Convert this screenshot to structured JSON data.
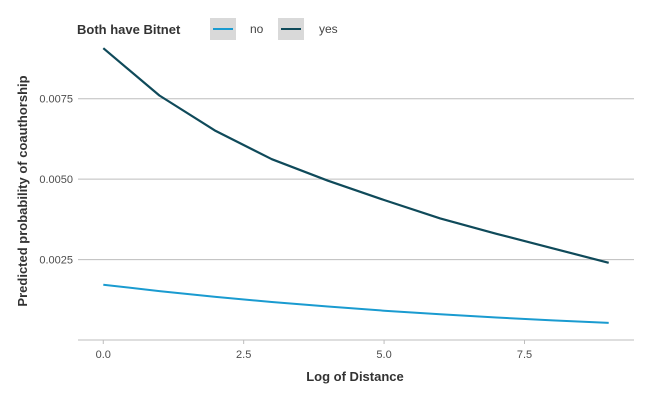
{
  "chart_data": {
    "type": "line",
    "title": "",
    "xlabel": "Log of Distance",
    "ylabel": "Predicted probability of coauthorship",
    "xlim": [
      -0.45,
      9.45
    ],
    "ylim": [
      0.0,
      0.0092
    ],
    "x_ticks": [
      0.0,
      2.5,
      5.0,
      7.5
    ],
    "x_tick_labels": [
      "0.0",
      "2.5",
      "5.0",
      "7.5"
    ],
    "y_ticks": [
      0.0025,
      0.005,
      0.0075
    ],
    "y_tick_labels": [
      "0.0025",
      "0.0050",
      "0.0075"
    ],
    "grid": "horizontal major only",
    "legend": {
      "title": "Both have Bitnet",
      "placement": "top-left",
      "entries": [
        "no",
        "yes"
      ]
    },
    "series": [
      {
        "name": "no",
        "color": "#1a9bd0",
        "x": [
          0,
          1,
          2,
          3,
          4,
          5,
          6,
          7,
          8,
          9
        ],
        "values": [
          0.00172,
          0.00152,
          0.00134,
          0.00118,
          0.00104,
          0.00091,
          0.0008,
          0.0007,
          0.00061,
          0.00053
        ]
      },
      {
        "name": "yes",
        "color": "#0f4a5a",
        "x": [
          0,
          1,
          2,
          3,
          4,
          5,
          6,
          7,
          8,
          9
        ],
        "values": [
          0.00907,
          0.0076,
          0.0065,
          0.00562,
          0.00495,
          0.00435,
          0.00378,
          0.0033,
          0.00285,
          0.0024
        ]
      }
    ]
  }
}
